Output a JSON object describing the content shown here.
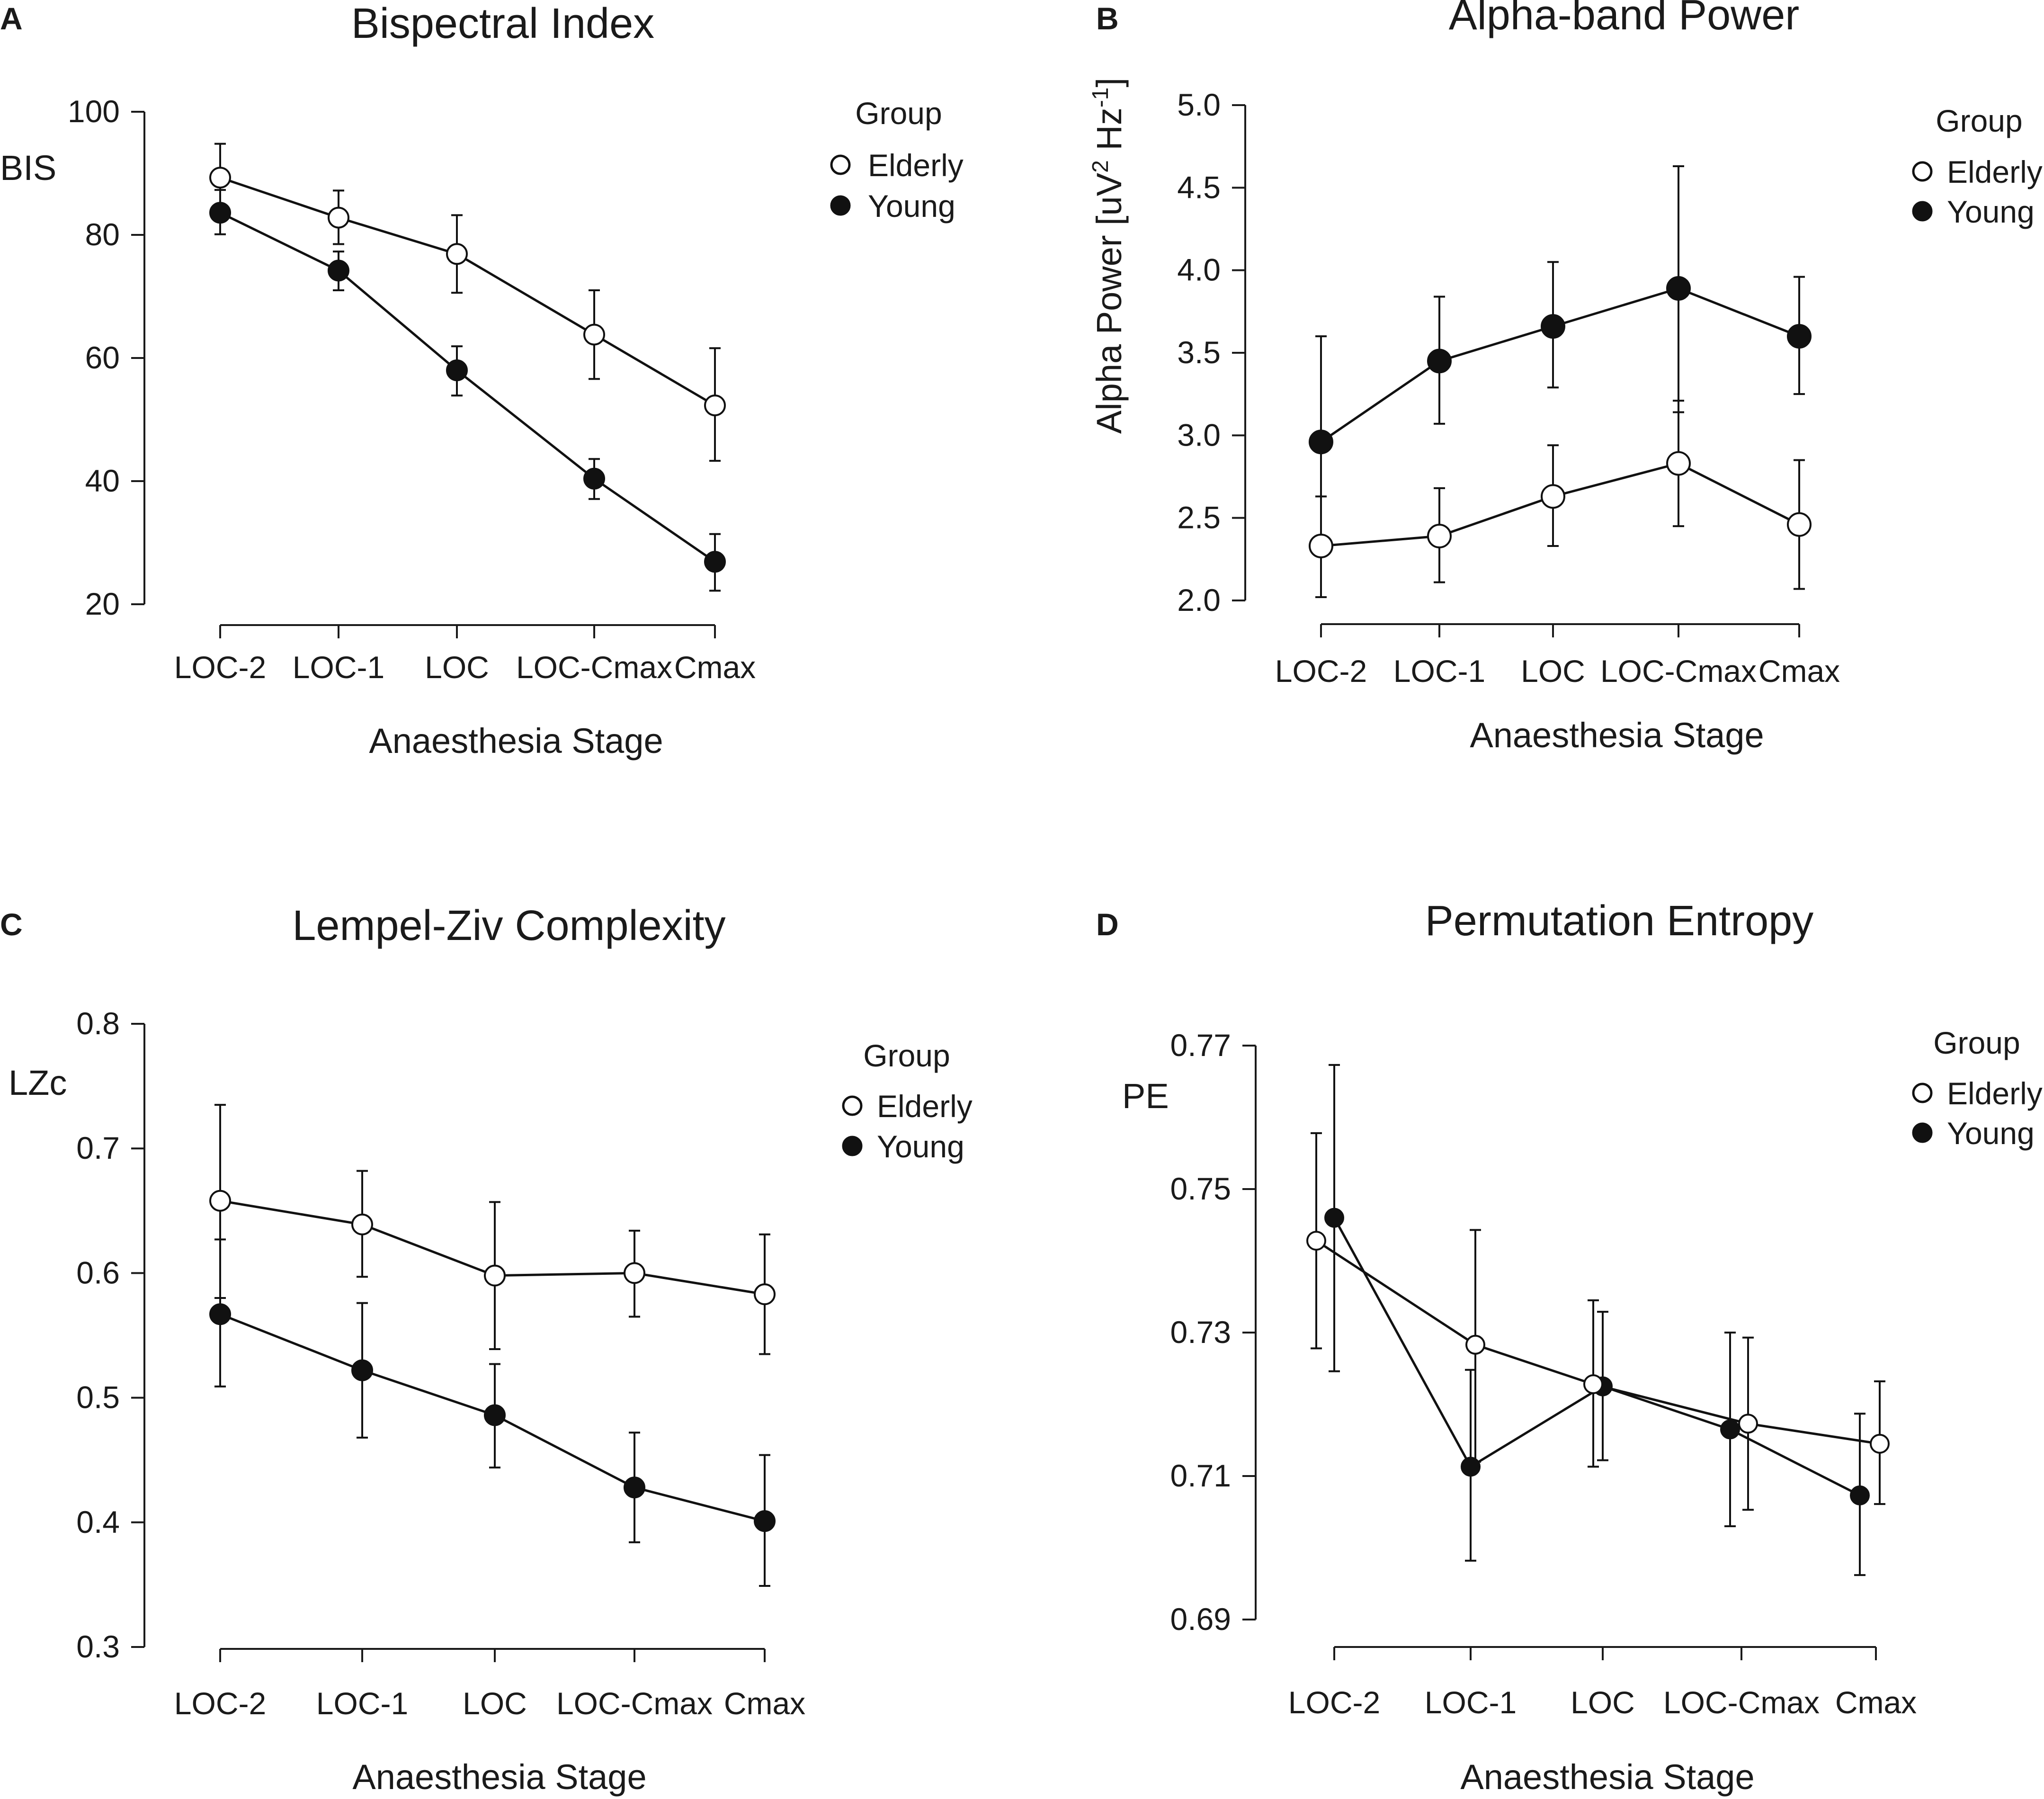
{
  "chart_data": [
    {
      "type": "line",
      "panel": "A",
      "title": "Bispectral Index",
      "xlabel": "Anaesthesia Stage",
      "ylabel": "BIS",
      "categories": [
        "LOC-2",
        "LOC-1",
        "LOC",
        "LOC-Cmax",
        "Cmax"
      ],
      "ylim": [
        20,
        100
      ],
      "yticks": [
        "20",
        "40",
        "60",
        "80",
        "100"
      ],
      "legend": {
        "title": "Group",
        "position": "top-right"
      },
      "series": [
        {
          "name": "Elderly",
          "marker": "open-circle",
          "values": [
            89.3,
            82.8,
            76.9,
            63.8,
            52.3
          ],
          "err_low": [
            83.6,
            78.5,
            70.6,
            56.6,
            43.3
          ],
          "err_high": [
            94.8,
            87.2,
            83.2,
            71.0,
            61.6
          ]
        },
        {
          "name": "Young",
          "marker": "filled-circle",
          "values": [
            83.6,
            74.2,
            58.0,
            40.4,
            26.9
          ],
          "err_low": [
            80.1,
            71.0,
            53.9,
            37.1,
            22.2
          ],
          "err_high": [
            87.3,
            77.3,
            61.9,
            43.6,
            31.4
          ]
        }
      ]
    },
    {
      "type": "line",
      "panel": "B",
      "title": "Alpha-band Power",
      "xlabel": "Anaesthesia Stage",
      "ylabel_main": "Alpha Power [uV",
      "ylabel_sup1": "2",
      "ylabel_mid": " Hz",
      "ylabel_sup2": "-1",
      "ylabel_end": "]",
      "categories": [
        "LOC-2",
        "LOC-1",
        "LOC",
        "LOC-Cmax",
        "Cmax"
      ],
      "ylim": [
        2.0,
        5.0
      ],
      "yticks": [
        "2.0",
        "2.5",
        "3.0",
        "3.5",
        "4.0",
        "4.5",
        "5.0"
      ],
      "legend": {
        "title": "Group",
        "position": "top-right"
      },
      "series": [
        {
          "name": "Elderly",
          "marker": "open-circle",
          "values": [
            2.33,
            2.39,
            2.63,
            2.83,
            2.46
          ],
          "err_low": [
            2.02,
            2.11,
            2.33,
            2.45,
            2.07
          ],
          "err_high": [
            2.63,
            2.68,
            2.94,
            3.21,
            2.85
          ]
        },
        {
          "name": "Young",
          "marker": "filled-circle",
          "values": [
            2.96,
            3.45,
            3.66,
            3.89,
            3.6
          ],
          "err_low": [
            2.33,
            3.07,
            3.29,
            3.14,
            3.25
          ],
          "err_high": [
            3.6,
            3.84,
            4.05,
            4.63,
            3.96
          ]
        }
      ]
    },
    {
      "type": "line",
      "panel": "C",
      "title": "Lempel-Ziv Complexity",
      "xlabel": "Anaesthesia Stage",
      "ylabel": "LZc",
      "categories": [
        "LOC-2",
        "LOC-1",
        "LOC",
        "LOC-Cmax",
        "Cmax"
      ],
      "ylim": [
        0.3,
        0.8
      ],
      "yticks": [
        "0.3",
        "0.4",
        "0.5",
        "0.6",
        "0.7",
        "0.8"
      ],
      "legend": {
        "title": "Group",
        "position": "top-right"
      },
      "series": [
        {
          "name": "Elderly",
          "marker": "open-circle",
          "values": [
            0.658,
            0.639,
            0.598,
            0.6,
            0.583
          ],
          "err_low": [
            0.58,
            0.597,
            0.539,
            0.565,
            0.535
          ],
          "err_high": [
            0.735,
            0.682,
            0.657,
            0.634,
            0.631
          ]
        },
        {
          "name": "Young",
          "marker": "filled-circle",
          "values": [
            0.567,
            0.522,
            0.486,
            0.428,
            0.401
          ],
          "err_low": [
            0.509,
            0.468,
            0.444,
            0.384,
            0.349
          ],
          "err_high": [
            0.627,
            0.576,
            0.527,
            0.472,
            0.454
          ]
        }
      ]
    },
    {
      "type": "line",
      "panel": "D",
      "title": "Permutation Entropy",
      "xlabel": "Anaesthesia Stage",
      "ylabel": "PE",
      "categories": [
        "LOC-2",
        "LOC-1",
        "LOC",
        "LOC-Cmax",
        "Cmax"
      ],
      "ylim": [
        0.69,
        0.77
      ],
      "yticks": [
        "0.69",
        "0.71",
        "0.73",
        "0.75",
        "0.77"
      ],
      "legend": {
        "title": "Group",
        "position": "top-right"
      },
      "series": [
        {
          "name": "Elderly",
          "marker": "open-circle",
          "values": [
            0.7428,
            0.7283,
            0.7228,
            0.7173,
            0.7145
          ],
          "err_low": [
            0.7278,
            0.712,
            0.7113,
            0.7053,
            0.7061
          ],
          "err_high": [
            0.7578,
            0.7443,
            0.7345,
            0.7293,
            0.7232
          ]
        },
        {
          "name": "Young",
          "marker": "filled-circle",
          "values": [
            0.746,
            0.7113,
            0.7225,
            0.7165,
            0.7073
          ],
          "err_low": [
            0.7246,
            0.6982,
            0.7122,
            0.703,
            0.6962
          ],
          "err_high": [
            0.7673,
            0.7248,
            0.7329,
            0.73,
            0.7187
          ]
        }
      ]
    }
  ]
}
